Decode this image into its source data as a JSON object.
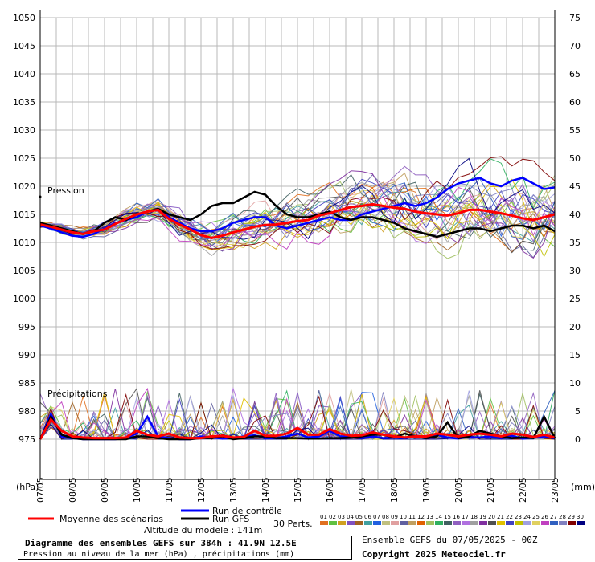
{
  "chart_data": {
    "type": "line",
    "title": "Diagramme des ensembles GEFS sur 384h : 41.9N 12.5E",
    "subtitle": "Pression au niveau de la mer (hPa) , précipitations (mm)",
    "left_unit": "(hPa)",
    "right_unit": "(mm)",
    "left_ylim": [
      975,
      1050
    ],
    "left_ticks": [
      975,
      980,
      985,
      990,
      995,
      1000,
      1005,
      1010,
      1015,
      1020,
      1025,
      1030,
      1035,
      1040,
      1045,
      1050
    ],
    "right_ylim": [
      0,
      75
    ],
    "right_ticks": [
      0,
      5,
      10,
      15,
      20,
      25,
      30,
      35,
      40,
      45,
      50,
      55,
      60,
      65,
      70,
      75
    ],
    "dates": [
      "07/05",
      "08/05",
      "09/05",
      "10/05",
      "11/05",
      "12/05",
      "13/05",
      "14/05",
      "15/05",
      "16/05",
      "17/05",
      "18/05",
      "19/05",
      "20/05",
      "21/05",
      "22/05",
      "23/05"
    ],
    "grid": true,
    "annotations": {
      "pressure": "Pression",
      "precip": "Précipitations"
    },
    "series": [
      {
        "name": "Moyenne des scénarios",
        "color": "#ff0000",
        "pressure": [
          1013.2,
          1012.8,
          1012.3,
          1011.8,
          1011.5,
          1012.0,
          1012.3,
          1013.3,
          1014.2,
          1015.0,
          1015.5,
          1015.8,
          1014.2,
          1013.2,
          1012.3,
          1011.3,
          1010.8,
          1011.2,
          1011.8,
          1012.3,
          1012.8,
          1013.1,
          1013.2,
          1013.5,
          1013.8,
          1014.0,
          1014.8,
          1015.2,
          1015.8,
          1016.3,
          1016.5,
          1016.8,
          1016.5,
          1016.2,
          1016.0,
          1015.5,
          1015.2,
          1015.0,
          1014.8,
          1015.2,
          1015.8,
          1015.8,
          1015.5,
          1015.2,
          1014.8,
          1014.3,
          1014.0,
          1014.5,
          1015.0
        ],
        "precip": [
          0,
          3.5,
          1.5,
          0.5,
          0.3,
          0.2,
          0.2,
          0.2,
          0.3,
          1.5,
          0.8,
          0.5,
          1.0,
          0.3,
          0.2,
          0.2,
          0.5,
          0.6,
          0.3,
          0.4,
          1.5,
          0.6,
          0.6,
          1.0,
          2.0,
          0.8,
          0.8,
          1.8,
          1.0,
          0.6,
          0.7,
          1.2,
          0.8,
          0.5,
          0.3,
          0.5,
          0.5,
          1.0,
          0.8,
          0.5,
          0.8,
          1.0,
          0.8,
          0.5,
          1.0,
          0.8,
          0.4,
          0.8,
          0.3
        ]
      },
      {
        "name": "Run de contrôle",
        "color": "#0000ff",
        "pressure": [
          1013.0,
          1012.5,
          1011.8,
          1011.2,
          1011.0,
          1011.5,
          1012.5,
          1013.5,
          1014.0,
          1014.5,
          1015.5,
          1016.0,
          1014.5,
          1013.5,
          1012.5,
          1012.0,
          1012.0,
          1012.5,
          1013.5,
          1014.0,
          1014.5,
          1014.5,
          1013.0,
          1012.5,
          1013.0,
          1013.5,
          1014.0,
          1014.5,
          1014.0,
          1014.0,
          1015.0,
          1015.5,
          1016.0,
          1016.5,
          1017.0,
          1016.5,
          1017.0,
          1018.0,
          1019.5,
          1020.5,
          1021.0,
          1021.5,
          1020.5,
          1020.0,
          1021.0,
          1021.5,
          1020.5,
          1019.5,
          1019.8
        ],
        "precip": [
          0,
          4.5,
          0.5,
          0.2,
          0,
          0,
          0,
          0,
          0.2,
          1.0,
          4.0,
          0.5,
          0.2,
          0,
          0,
          0.5,
          0.3,
          0.1,
          0.2,
          0.5,
          0.7,
          0.2,
          0.2,
          0.5,
          1.0,
          0.3,
          0.5,
          1.5,
          0.5,
          0.5,
          0.2,
          0.5,
          0.2,
          0.3,
          0.2,
          0.5,
          0.5,
          0.8,
          0.3,
          0.1,
          0.4,
          0.3,
          0.5,
          0.2,
          0.6,
          0.1,
          0.3,
          0.5,
          0.2
        ]
      },
      {
        "name": "Run GFS",
        "color": "#000000",
        "pressure": [
          1013.5,
          1013.0,
          1012.5,
          1012.0,
          1011.5,
          1012.0,
          1013.5,
          1014.5,
          1014.0,
          1015.0,
          1015.5,
          1016.0,
          1015.0,
          1014.5,
          1014.0,
          1015.0,
          1016.5,
          1017.0,
          1017.0,
          1018.0,
          1019.0,
          1018.5,
          1016.5,
          1015.0,
          1014.5,
          1014.5,
          1015.0,
          1015.5,
          1014.5,
          1014.0,
          1014.5,
          1014.5,
          1014.0,
          1013.5,
          1012.5,
          1012.0,
          1011.5,
          1011.0,
          1011.5,
          1012.0,
          1012.5,
          1012.5,
          1012.0,
          1012.5,
          1013.0,
          1013.0,
          1012.5,
          1013.0,
          1012.0
        ],
        "precip": [
          0,
          4.0,
          0.8,
          0.2,
          0,
          0,
          0,
          0,
          0,
          0.5,
          0.5,
          0.2,
          0,
          0,
          0,
          0.2,
          0.2,
          0.5,
          0,
          0.2,
          0.5,
          0.5,
          0.2,
          0.2,
          0.2,
          0.1,
          0.1,
          0.2,
          0.2,
          0.3,
          0.5,
          0.8,
          0.8,
          0.3,
          1.0,
          0.5,
          0.2,
          0.5,
          3.0,
          0.2,
          0.5,
          1.5,
          1.0,
          0.5,
          0.2,
          0.3,
          0.2,
          4.0,
          0.2
        ]
      }
    ]
  },
  "legend": {
    "mean": "Moyenne des scénarios",
    "control": "Run de contrôle",
    "gfs": "Run GFS",
    "perts_label": "30 Perts.",
    "pert_ids": [
      "01",
      "02",
      "03",
      "04",
      "05",
      "06",
      "07",
      "08",
      "09",
      "10",
      "11",
      "12",
      "13",
      "14",
      "15",
      "16",
      "17",
      "18",
      "19",
      "20",
      "21",
      "22",
      "23",
      "24",
      "25",
      "26",
      "27",
      "28",
      "29",
      "30"
    ],
    "pert_colors": [
      "#e07020",
      "#60c040",
      "#d0a020",
      "#8050c0",
      "#a06020",
      "#40a0a0",
      "#2060e0",
      "#c0c080",
      "#e0a0a0",
      "#6060a0",
      "#c0a060",
      "#e06000",
      "#a0c060",
      "#30b060",
      "#406060",
      "#9060c0",
      "#b070e0",
      "#a0a0a0",
      "#8030a0",
      "#505050",
      "#e0c000",
      "#4040c0",
      "#c0c000",
      "#a0a0e0",
      "#e0d060",
      "#c040c0",
      "#3060c0",
      "#8080c0",
      "#800000",
      "#000080"
    ]
  },
  "info": {
    "altitude": "Altitude du modele : 141m",
    "title": "Diagramme des ensembles GEFS sur 384h : 41.9N 12.5E",
    "subtitle": "Pression au niveau de la mer (hPa) , précipitations (mm)",
    "run": "Ensemble GEFS du 07/05/2025 - 00Z",
    "copyright": "Copyright 2025 Meteociel.fr"
  }
}
